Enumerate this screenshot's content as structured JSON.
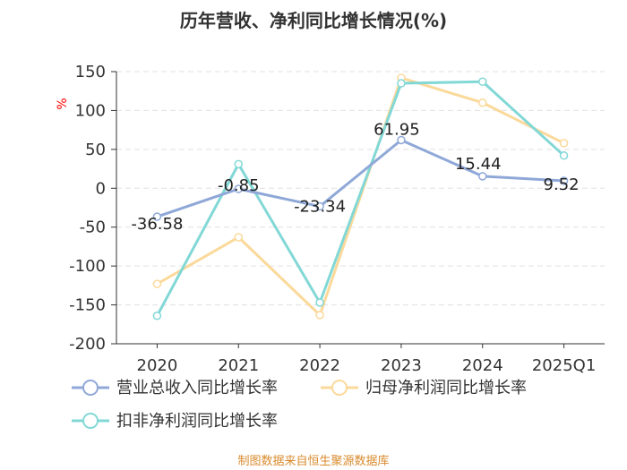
{
  "chart_data": {
    "type": "line",
    "title": "历年营收、净利同比增长情况(%)",
    "ylabel": "%",
    "categories": [
      "2020",
      "2021",
      "2022",
      "2023",
      "2024",
      "2025Q1"
    ],
    "ylim": [
      -200,
      150
    ],
    "yticks": [
      150,
      100,
      50,
      0,
      -50,
      -100,
      -150,
      -200
    ],
    "ytick_labels": [
      "150",
      "100",
      "50",
      "0",
      "-50",
      "-100",
      "-150",
      "-200"
    ],
    "grid": true,
    "legend_position": "bottom",
    "series": [
      {
        "name": "营业总收入同比增长率",
        "color": "#8fa8d8",
        "values": [
          -36.58,
          -0.85,
          -23.34,
          61.95,
          15.44,
          9.52
        ],
        "data_labels": [
          "-36.58",
          "-0.85",
          "-23.34",
          "61.95",
          "15.44",
          "9.52"
        ]
      },
      {
        "name": "归母净利润同比增长率",
        "color": "#fbd99a",
        "values": [
          -123,
          -63,
          -163,
          142,
          110,
          58
        ]
      },
      {
        "name": "扣非净利润同比增长率",
        "color": "#82d8d6",
        "values": [
          -164,
          31,
          -147,
          135,
          137,
          42
        ]
      }
    ]
  },
  "source": "制图数据来自恒生聚源数据库"
}
